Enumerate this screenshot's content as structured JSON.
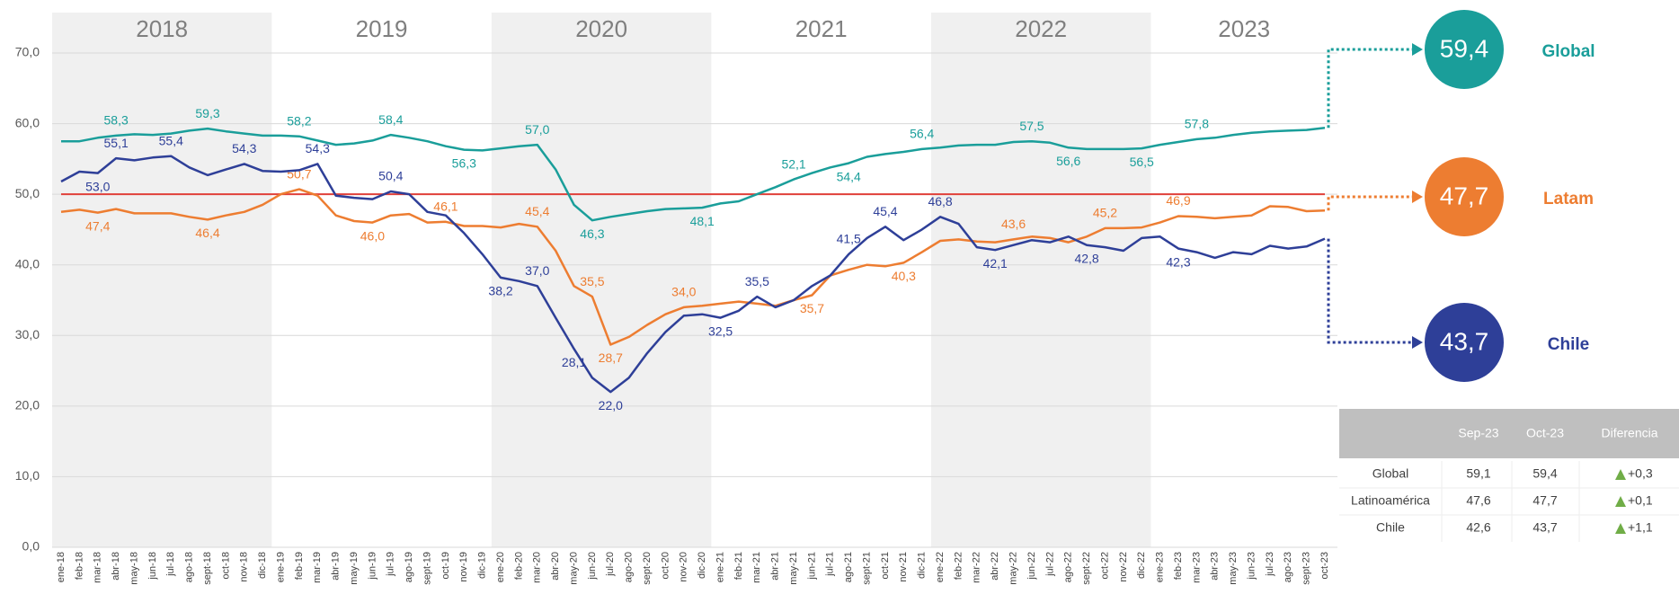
{
  "chart_data": {
    "type": "line",
    "periods": [
      "2018",
      "2019",
      "2020",
      "2021",
      "2022",
      "2023"
    ],
    "categories": [
      "ene-18",
      "feb-18",
      "mar-18",
      "abr-18",
      "may-18",
      "jun-18",
      "jul-18",
      "ago-18",
      "sept-18",
      "oct-18",
      "nov-18",
      "dic-18",
      "ene-19",
      "feb-19",
      "mar-19",
      "abr-19",
      "may-19",
      "jun-19",
      "jul-19",
      "ago-19",
      "sept-19",
      "oct-19",
      "nov-19",
      "dic-19",
      "ene-20",
      "feb-20",
      "mar-20",
      "abr-20",
      "may-20",
      "jun-20",
      "jul-20",
      "ago-20",
      "sept-20",
      "oct-20",
      "nov-20",
      "dic-20",
      "ene-21",
      "feb-21",
      "mar-21",
      "abr-21",
      "may-21",
      "jun-21",
      "jul-21",
      "ago-21",
      "sept-21",
      "oct-21",
      "nov-21",
      "dic-21",
      "ene-22",
      "feb-22",
      "mar-22",
      "abr-22",
      "may-22",
      "jun-22",
      "jul-22",
      "ago-22",
      "sept-22",
      "oct-22",
      "nov-22",
      "dic-22",
      "ene-23",
      "feb-23",
      "mar-23",
      "abr-23",
      "may-23",
      "jun-23",
      "jul-23",
      "ago-23",
      "sept-23",
      "oct-23"
    ],
    "series": [
      {
        "name": "Global",
        "color": "#1a9e9a",
        "values": [
          57.5,
          57.5,
          58.0,
          58.3,
          58.5,
          58.4,
          58.6,
          59.0,
          59.3,
          58.9,
          58.6,
          58.3,
          58.3,
          58.2,
          57.6,
          57.0,
          57.2,
          57.6,
          58.4,
          58.0,
          57.5,
          56.8,
          56.3,
          56.2,
          56.5,
          56.8,
          57.0,
          53.5,
          48.5,
          46.3,
          46.8,
          47.2,
          47.6,
          47.9,
          48.0,
          48.1,
          48.7,
          49.0,
          50.0,
          51.0,
          52.1,
          53.0,
          53.8,
          54.4,
          55.3,
          55.7,
          56.0,
          56.4,
          56.6,
          56.9,
          57.0,
          57.0,
          57.4,
          57.5,
          57.3,
          56.6,
          56.4,
          56.4,
          56.4,
          56.5,
          57.0,
          57.4,
          57.8,
          58.0,
          58.4,
          58.7,
          58.9,
          59.0,
          59.1,
          59.4
        ],
        "value_labels": [
          null,
          null,
          null,
          "58,3",
          null,
          null,
          null,
          null,
          "59,3",
          null,
          null,
          null,
          null,
          "58,2",
          null,
          null,
          null,
          null,
          "58,4",
          null,
          null,
          null,
          "56,3",
          null,
          null,
          null,
          "57,0",
          null,
          null,
          "46,3",
          null,
          null,
          null,
          null,
          null,
          "48,1",
          null,
          null,
          null,
          null,
          "52,1",
          null,
          null,
          "54,4",
          null,
          null,
          null,
          "56,4",
          null,
          null,
          null,
          null,
          null,
          "57,5",
          null,
          "56,6",
          null,
          null,
          null,
          "56,5",
          null,
          null,
          "57,8",
          null,
          null,
          null,
          null,
          null,
          null,
          "59,4"
        ]
      },
      {
        "name": "Latam",
        "color": "#ed7d31",
        "values": [
          47.5,
          47.8,
          47.4,
          47.9,
          47.3,
          47.3,
          47.3,
          46.8,
          46.4,
          47.0,
          47.5,
          48.5,
          50.0,
          50.7,
          49.8,
          47.0,
          46.2,
          46.0,
          47.0,
          47.2,
          46.0,
          46.1,
          45.5,
          45.5,
          45.3,
          45.8,
          45.4,
          42.0,
          37.0,
          35.5,
          28.7,
          29.8,
          31.5,
          33.0,
          34.0,
          34.2,
          34.5,
          34.8,
          34.5,
          34.2,
          35.0,
          35.7,
          38.5,
          39.3,
          40.0,
          39.8,
          40.3,
          41.8,
          43.4,
          43.6,
          43.3,
          43.2,
          43.6,
          44.0,
          43.8,
          43.2,
          44.0,
          45.2,
          45.2,
          45.3,
          46.0,
          46.9,
          46.8,
          46.6,
          46.8,
          47.0,
          48.3,
          48.2,
          47.6,
          47.7
        ],
        "value_labels": [
          null,
          null,
          "47,4",
          null,
          null,
          null,
          null,
          null,
          "46,4",
          null,
          null,
          null,
          null,
          "50,7",
          null,
          null,
          null,
          "46,0",
          null,
          null,
          null,
          "46,1",
          null,
          null,
          null,
          null,
          "45,4",
          null,
          null,
          "35,5",
          "28,7",
          null,
          null,
          null,
          "34,0",
          null,
          null,
          null,
          null,
          null,
          null,
          "35,7",
          null,
          null,
          null,
          null,
          "40,3",
          null,
          null,
          null,
          null,
          null,
          "43,6",
          null,
          null,
          null,
          null,
          "45,2",
          null,
          null,
          null,
          "46,9",
          null,
          null,
          null,
          null,
          null,
          null,
          null,
          "47,7"
        ]
      },
      {
        "name": "Chile",
        "color": "#2e3f98",
        "values": [
          51.8,
          53.2,
          53.0,
          55.1,
          54.8,
          55.2,
          55.4,
          53.8,
          52.7,
          53.5,
          54.3,
          53.3,
          53.2,
          53.4,
          54.3,
          49.8,
          49.5,
          49.3,
          50.4,
          50.0,
          47.5,
          47.0,
          44.5,
          41.5,
          38.2,
          37.7,
          37.0,
          32.5,
          28.1,
          24.0,
          22.0,
          24.0,
          27.5,
          30.5,
          32.8,
          33.0,
          32.5,
          33.5,
          35.5,
          34.0,
          35.0,
          37.0,
          38.5,
          41.5,
          43.8,
          45.4,
          43.5,
          45.0,
          46.8,
          45.8,
          42.5,
          42.1,
          42.8,
          43.5,
          43.2,
          44.0,
          42.8,
          42.5,
          42.0,
          43.8,
          44.0,
          42.3,
          41.8,
          41.0,
          41.8,
          41.5,
          42.7,
          42.3,
          42.6,
          43.7
        ],
        "value_labels": [
          null,
          null,
          "53,0",
          "55,1",
          null,
          null,
          "55,4",
          null,
          null,
          null,
          "54,3",
          null,
          null,
          null,
          "54,3",
          null,
          null,
          null,
          "50,4",
          null,
          null,
          null,
          null,
          null,
          "38,2",
          null,
          "37,0",
          null,
          "28,1",
          null,
          "22,0",
          null,
          null,
          null,
          null,
          null,
          "32,5",
          null,
          "35,5",
          null,
          null,
          null,
          null,
          "41,5",
          null,
          "45,4",
          null,
          null,
          "46,8",
          null,
          null,
          "42,1",
          null,
          null,
          null,
          null,
          "42,8",
          null,
          null,
          null,
          null,
          "42,3",
          null,
          null,
          null,
          null,
          null,
          null,
          null,
          "43,7"
        ]
      }
    ],
    "reference_line": {
      "value": 50,
      "color": "#e0403a"
    },
    "ylim": [
      0,
      70
    ],
    "yticks": [
      {
        "value": 0,
        "label": "0,0"
      },
      {
        "value": 10,
        "label": "10,0"
      },
      {
        "value": 20,
        "label": "20,0"
      },
      {
        "value": 30,
        "label": "30,0"
      },
      {
        "value": 40,
        "label": "40,0"
      },
      {
        "value": 50,
        "label": "50,0"
      },
      {
        "value": 60,
        "label": "60,0"
      },
      {
        "value": 70,
        "label": "70,0"
      }
    ],
    "grid": true
  },
  "table": {
    "header": [
      "Sep-23",
      "Oct-23",
      "Diferencia"
    ],
    "rows": [
      [
        "Global",
        "59,1",
        "59,4",
        "+0,3"
      ],
      [
        "Latinoamérica",
        "47,6",
        "47,7",
        "+0,1"
      ],
      [
        "Chile",
        "42,6",
        "43,7",
        "+1,1"
      ]
    ]
  }
}
